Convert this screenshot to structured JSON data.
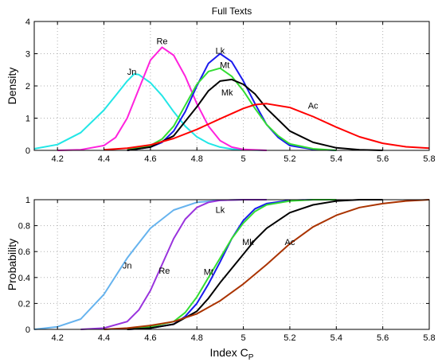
{
  "chart_data": [
    {
      "type": "line",
      "title": "Full Texts",
      "xlabel": "",
      "ylabel": "Density",
      "xlim": [
        4.1,
        5.8
      ],
      "ylim": [
        0,
        4
      ],
      "xticks": [
        "4.2",
        "4.4",
        "4.6",
        "4.8",
        "5",
        "5.2",
        "5.4",
        "5.6",
        "5.8"
      ],
      "yticks": [
        "0",
        "1",
        "2",
        "3",
        "4"
      ],
      "grid": true,
      "legend": "none",
      "series": [
        {
          "name": "Jn",
          "color": "#22e6e6",
          "x": [
            4.1,
            4.2,
            4.3,
            4.4,
            4.45,
            4.5,
            4.53,
            4.55,
            4.6,
            4.65,
            4.7,
            4.75,
            4.8,
            4.85,
            4.9,
            4.95,
            5.0,
            5.1
          ],
          "y": [
            0.05,
            0.18,
            0.55,
            1.25,
            1.7,
            2.15,
            2.37,
            2.35,
            2.1,
            1.7,
            1.2,
            0.75,
            0.42,
            0.22,
            0.1,
            0.04,
            0.02,
            0.0
          ]
        },
        {
          "name": "Re",
          "color": "#ff22dd",
          "x": [
            4.2,
            4.3,
            4.4,
            4.45,
            4.5,
            4.55,
            4.6,
            4.65,
            4.7,
            4.75,
            4.8,
            4.85,
            4.9,
            4.95,
            5.0,
            5.1
          ],
          "y": [
            0.0,
            0.02,
            0.15,
            0.4,
            1.0,
            1.9,
            2.8,
            3.2,
            2.95,
            2.3,
            1.45,
            0.75,
            0.3,
            0.1,
            0.03,
            0.0
          ]
        },
        {
          "name": "Lk",
          "color": "#1a1aee",
          "x": [
            4.5,
            4.6,
            4.65,
            4.7,
            4.75,
            4.8,
            4.85,
            4.9,
            4.95,
            5.0,
            5.05,
            5.1,
            5.15,
            5.2,
            5.3,
            5.4
          ],
          "y": [
            0.0,
            0.1,
            0.25,
            0.6,
            1.2,
            2.0,
            2.7,
            3.0,
            2.75,
            2.15,
            1.45,
            0.8,
            0.4,
            0.15,
            0.03,
            0.0
          ]
        },
        {
          "name": "Mt",
          "color": "#33dd33",
          "x": [
            4.5,
            4.6,
            4.65,
            4.7,
            4.75,
            4.8,
            4.85,
            4.9,
            4.95,
            5.0,
            5.05,
            5.1,
            5.15,
            5.2,
            5.3,
            5.4
          ],
          "y": [
            0.02,
            0.15,
            0.35,
            0.75,
            1.4,
            2.05,
            2.45,
            2.55,
            2.3,
            1.85,
            1.3,
            0.8,
            0.45,
            0.2,
            0.05,
            0.0
          ]
        },
        {
          "name": "Mk",
          "color": "#000000",
          "x": [
            4.5,
            4.6,
            4.7,
            4.8,
            4.85,
            4.9,
            4.95,
            5.0,
            5.05,
            5.1,
            5.15,
            5.2,
            5.3,
            5.4,
            5.5,
            5.6
          ],
          "y": [
            0.0,
            0.1,
            0.45,
            1.35,
            1.85,
            2.15,
            2.2,
            2.05,
            1.75,
            1.3,
            0.95,
            0.6,
            0.25,
            0.08,
            0.02,
            0.0
          ]
        },
        {
          "name": "Ac",
          "color": "#ff0000",
          "x": [
            4.4,
            4.5,
            4.6,
            4.7,
            4.8,
            4.9,
            5.0,
            5.05,
            5.1,
            5.2,
            5.3,
            5.4,
            5.5,
            5.6,
            5.7,
            5.8
          ],
          "y": [
            0.02,
            0.07,
            0.17,
            0.37,
            0.65,
            0.98,
            1.3,
            1.42,
            1.45,
            1.33,
            1.05,
            0.72,
            0.42,
            0.22,
            0.11,
            0.07
          ]
        }
      ],
      "annotations": [
        {
          "text": "Jn",
          "x": 4.52,
          "y": 2.35
        },
        {
          "text": "Re",
          "x": 4.65,
          "y": 3.3
        },
        {
          "text": "Lk",
          "x": 4.9,
          "y": 3.0
        },
        {
          "text": "Mt",
          "x": 4.92,
          "y": 2.55
        },
        {
          "text": "Mk",
          "x": 4.93,
          "y": 1.7
        },
        {
          "text": "Ac",
          "x": 5.3,
          "y": 1.3
        }
      ]
    },
    {
      "type": "line",
      "title": "",
      "xlabel": "Index C",
      "xlabel_sub": "P",
      "ylabel": "Probability",
      "xlim": [
        4.1,
        5.8
      ],
      "ylim": [
        0,
        1
      ],
      "xticks": [
        "4.2",
        "4.4",
        "4.6",
        "4.8",
        "5",
        "5.2",
        "5.4",
        "5.6",
        "5.8"
      ],
      "yticks": [
        "0",
        "0.2",
        "0.4",
        "0.6",
        "0.8",
        "1"
      ],
      "grid": true,
      "legend": "none",
      "series": [
        {
          "name": "Jn",
          "color": "#66b3ee",
          "x": [
            4.1,
            4.2,
            4.3,
            4.4,
            4.5,
            4.53,
            4.6,
            4.7,
            4.8,
            4.9,
            5.0,
            5.1
          ],
          "y": [
            0.0,
            0.02,
            0.08,
            0.27,
            0.55,
            0.62,
            0.78,
            0.92,
            0.98,
            0.995,
            1.0,
            1.0
          ]
        },
        {
          "name": "Re",
          "color": "#9933dd",
          "x": [
            4.3,
            4.4,
            4.5,
            4.55,
            4.6,
            4.65,
            4.7,
            4.75,
            4.8,
            4.85,
            4.9,
            5.0,
            5.1
          ],
          "y": [
            0.0,
            0.01,
            0.06,
            0.15,
            0.3,
            0.5,
            0.7,
            0.85,
            0.94,
            0.98,
            0.995,
            1.0,
            1.0
          ]
        },
        {
          "name": "Lk",
          "color": "#1a1aee",
          "x": [
            4.5,
            4.6,
            4.7,
            4.75,
            4.8,
            4.85,
            4.9,
            4.95,
            5.0,
            5.05,
            5.1,
            5.2,
            5.3,
            5.4
          ],
          "y": [
            0.0,
            0.01,
            0.04,
            0.1,
            0.2,
            0.35,
            0.52,
            0.7,
            0.84,
            0.93,
            0.97,
            0.995,
            1.0,
            1.0
          ]
        },
        {
          "name": "Mt",
          "color": "#33dd33",
          "x": [
            4.5,
            4.6,
            4.7,
            4.75,
            4.8,
            4.85,
            4.9,
            4.95,
            5.0,
            5.05,
            5.1,
            5.2,
            5.3,
            5.4
          ],
          "y": [
            0.0,
            0.02,
            0.06,
            0.13,
            0.25,
            0.4,
            0.55,
            0.7,
            0.82,
            0.91,
            0.96,
            0.99,
            1.0,
            1.0
          ]
        },
        {
          "name": "Mk",
          "color": "#000000",
          "x": [
            4.5,
            4.6,
            4.7,
            4.8,
            4.85,
            4.9,
            4.95,
            5.0,
            5.05,
            5.1,
            5.2,
            5.3,
            5.4,
            5.5,
            5.6
          ],
          "y": [
            0.0,
            0.01,
            0.04,
            0.14,
            0.24,
            0.36,
            0.47,
            0.58,
            0.69,
            0.78,
            0.9,
            0.96,
            0.99,
            1.0,
            1.0
          ]
        },
        {
          "name": "Ac",
          "color": "#aa3300",
          "x": [
            4.4,
            4.5,
            4.6,
            4.7,
            4.8,
            4.9,
            5.0,
            5.1,
            5.2,
            5.3,
            5.4,
            5.5,
            5.6,
            5.7,
            5.8
          ],
          "y": [
            0.0,
            0.01,
            0.03,
            0.06,
            0.12,
            0.22,
            0.35,
            0.5,
            0.66,
            0.79,
            0.88,
            0.94,
            0.97,
            0.99,
            1.0
          ]
        }
      ],
      "annotations": [
        {
          "text": "Jn",
          "x": 4.5,
          "y": 0.47
        },
        {
          "text": "Re",
          "x": 4.66,
          "y": 0.43
        },
        {
          "text": "Mt",
          "x": 4.85,
          "y": 0.42
        },
        {
          "text": "Lk",
          "x": 4.9,
          "y": 0.9
        },
        {
          "text": "Mk",
          "x": 5.02,
          "y": 0.65
        },
        {
          "text": "Ac",
          "x": 5.2,
          "y": 0.65
        }
      ]
    }
  ]
}
